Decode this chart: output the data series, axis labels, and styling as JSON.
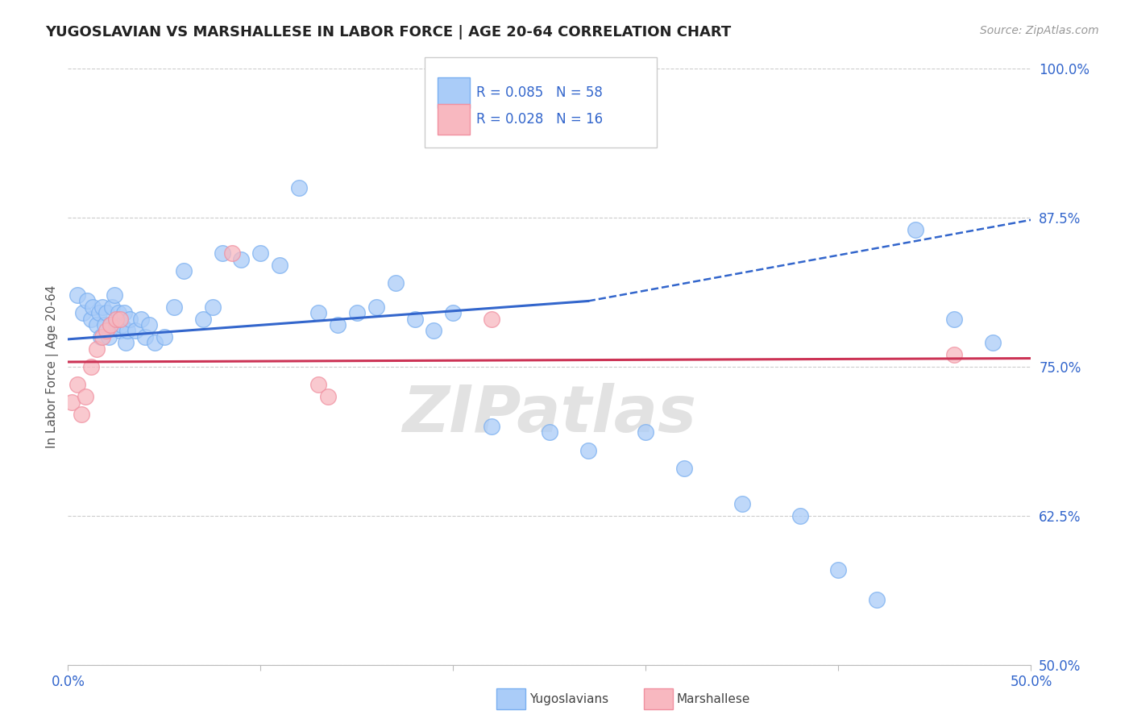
{
  "title": "YUGOSLAVIAN VS MARSHALLESE IN LABOR FORCE | AGE 20-64 CORRELATION CHART",
  "source": "Source: ZipAtlas.com",
  "ylabel": "In Labor Force | Age 20-64",
  "xlim": [
    0.0,
    0.5
  ],
  "ylim": [
    0.5,
    1.0
  ],
  "ytick_labels_right": [
    "50.0%",
    "62.5%",
    "75.0%",
    "87.5%",
    "100.0%"
  ],
  "ytick_vals_right": [
    0.5,
    0.625,
    0.75,
    0.875,
    1.0
  ],
  "grid_color": "#cccccc",
  "background_color": "#ffffff",
  "watermark": "ZIPatlas",
  "legend_R1": "R = 0.085",
  "legend_N1": "N = 58",
  "legend_R2": "R = 0.028",
  "legend_N2": "N = 16",
  "blue_color": "#7aaff0",
  "blue_face": "#aaccf8",
  "pink_color": "#f090a0",
  "pink_face": "#f8b8c0",
  "line_blue": "#3366cc",
  "line_pink": "#cc3355",
  "text_blue": "#3366cc",
  "blue_x": [
    0.005,
    0.008,
    0.01,
    0.012,
    0.013,
    0.015,
    0.016,
    0.017,
    0.018,
    0.019,
    0.02,
    0.021,
    0.022,
    0.023,
    0.024,
    0.025,
    0.026,
    0.027,
    0.028,
    0.029,
    0.03,
    0.031,
    0.032,
    0.035,
    0.038,
    0.04,
    0.042,
    0.045,
    0.05,
    0.055,
    0.06,
    0.07,
    0.075,
    0.08,
    0.09,
    0.1,
    0.11,
    0.12,
    0.13,
    0.14,
    0.15,
    0.16,
    0.17,
    0.18,
    0.19,
    0.2,
    0.22,
    0.25,
    0.27,
    0.3,
    0.32,
    0.35,
    0.38,
    0.4,
    0.42,
    0.44,
    0.46,
    0.48
  ],
  "blue_y": [
    0.81,
    0.795,
    0.805,
    0.79,
    0.8,
    0.785,
    0.795,
    0.775,
    0.8,
    0.785,
    0.795,
    0.775,
    0.785,
    0.8,
    0.81,
    0.785,
    0.795,
    0.78,
    0.785,
    0.795,
    0.77,
    0.78,
    0.79,
    0.78,
    0.79,
    0.775,
    0.785,
    0.77,
    0.775,
    0.8,
    0.83,
    0.79,
    0.8,
    0.845,
    0.84,
    0.845,
    0.835,
    0.9,
    0.795,
    0.785,
    0.795,
    0.8,
    0.82,
    0.79,
    0.78,
    0.795,
    0.7,
    0.695,
    0.68,
    0.695,
    0.665,
    0.635,
    0.625,
    0.58,
    0.555,
    0.865,
    0.79,
    0.77
  ],
  "pink_x": [
    0.002,
    0.005,
    0.007,
    0.009,
    0.012,
    0.015,
    0.018,
    0.02,
    0.022,
    0.025,
    0.027,
    0.085,
    0.13,
    0.135,
    0.22,
    0.46
  ],
  "pink_y": [
    0.72,
    0.735,
    0.71,
    0.725,
    0.75,
    0.765,
    0.775,
    0.78,
    0.785,
    0.79,
    0.79,
    0.845,
    0.735,
    0.725,
    0.79,
    0.76
  ],
  "trend_blue_x0": 0.0,
  "trend_blue_y0": 0.773,
  "trend_blue_x1": 0.27,
  "trend_blue_y1": 0.805,
  "trend_blue_dashed_x0": 0.27,
  "trend_blue_dashed_y0": 0.805,
  "trend_blue_dashed_x1": 0.5,
  "trend_blue_dashed_y1": 0.873,
  "trend_pink_x0": 0.0,
  "trend_pink_y0": 0.754,
  "trend_pink_x1": 0.5,
  "trend_pink_y1": 0.757
}
